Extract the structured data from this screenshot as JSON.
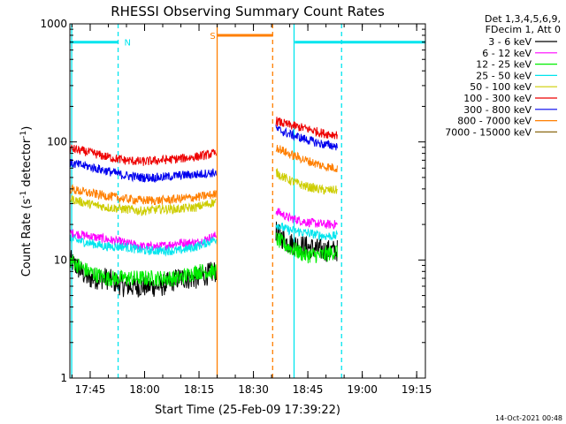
{
  "chart_data": {
    "type": "line",
    "title": "RHESSI Observing Summary Count Rates",
    "xlabel": "Start Time (25-Feb-09 17:39:22)",
    "ylabel_main": "Count Rate (s",
    "ylabel_sup1": "-1",
    "ylabel_mid": " detector",
    "ylabel_sup2": "-1",
    "ylabel_end": ")",
    "yscale": "log",
    "ylim": [
      1,
      1000
    ],
    "xlim_minutes": [
      0,
      98
    ],
    "x_tick_minutes": [
      5.6,
      20.6,
      35.6,
      50.6,
      65.6,
      80.6,
      95.6
    ],
    "x_tick_labels": [
      "17:45",
      "18:00",
      "18:15",
      "18:30",
      "18:45",
      "19:00",
      "19:15"
    ],
    "y_ticks": [
      1,
      10,
      100,
      1000
    ],
    "y_tick_labels": [
      "1",
      "10",
      "100",
      "1000"
    ],
    "legend_header": [
      "Det 1,3,4,5,6,9,",
      "FDecim 1, Att 0"
    ],
    "legend_position": "right",
    "date_stamp": "14-Oct-2021 00:48",
    "flags": [
      {
        "label": "N",
        "color": "#00e5ee",
        "level": 700,
        "segments": [
          [
            0,
            13.2
          ],
          [
            62,
            98
          ]
        ],
        "label_minute": 15.0
      },
      {
        "label": "S",
        "color": "#ff7f00",
        "level": 800,
        "segments": [
          [
            40.5,
            56.0
          ]
        ],
        "label_minute": 38.6
      }
    ],
    "vlines": [
      {
        "minute": 0.5,
        "color": "#00e5ee",
        "style": "solid"
      },
      {
        "minute": 13.3,
        "color": "#00e5ee",
        "style": "dashed"
      },
      {
        "minute": 40.6,
        "color": "#ff7f00",
        "style": "solid"
      },
      {
        "minute": 55.9,
        "color": "#ff7f00",
        "style": "dashed"
      },
      {
        "minute": 61.8,
        "color": "#00e5ee",
        "style": "solid"
      },
      {
        "minute": 74.9,
        "color": "#00e5ee",
        "style": "dashed"
      }
    ],
    "segments_minutes": [
      [
        0,
        40.4
      ],
      [
        56.8,
        73.8
      ]
    ],
    "series": [
      {
        "name": "3 - 6 keV",
        "color": "#000000",
        "seg1": [
          [
            0,
            10
          ],
          [
            5,
            7
          ],
          [
            10,
            7
          ],
          [
            15,
            6
          ],
          [
            20,
            6
          ],
          [
            25,
            6
          ],
          [
            30,
            7
          ],
          [
            35,
            7
          ],
          [
            40,
            8
          ]
        ],
        "seg2": [
          [
            57,
            17
          ],
          [
            60,
            14
          ],
          [
            65,
            13
          ],
          [
            70,
            12
          ],
          [
            73.8,
            12
          ]
        ]
      },
      {
        "name": "6 - 12 keV",
        "color": "#ff00ff",
        "seg1": [
          [
            0,
            17
          ],
          [
            5,
            16
          ],
          [
            10,
            15
          ],
          [
            15,
            14
          ],
          [
            20,
            13
          ],
          [
            25,
            13
          ],
          [
            30,
            14
          ],
          [
            35,
            14
          ],
          [
            40,
            16
          ]
        ],
        "seg2": [
          [
            57,
            26
          ],
          [
            60,
            23
          ],
          [
            65,
            21
          ],
          [
            70,
            20
          ],
          [
            73.8,
            20
          ]
        ]
      },
      {
        "name": "12 - 25 keV",
        "color": "#00ee00",
        "seg1": [
          [
            0,
            10
          ],
          [
            5,
            8
          ],
          [
            10,
            7
          ],
          [
            15,
            7
          ],
          [
            20,
            7
          ],
          [
            25,
            7
          ],
          [
            30,
            7
          ],
          [
            35,
            8
          ],
          [
            40,
            8
          ]
        ],
        "seg2": [
          [
            57,
            15
          ],
          [
            60,
            13
          ],
          [
            65,
            11
          ],
          [
            70,
            11
          ],
          [
            73.8,
            12
          ]
        ]
      },
      {
        "name": "25 - 50 keV",
        "color": "#00e5ee",
        "seg1": [
          [
            0,
            15
          ],
          [
            5,
            14
          ],
          [
            10,
            13
          ],
          [
            15,
            13
          ],
          [
            20,
            12
          ],
          [
            25,
            12
          ],
          [
            30,
            12
          ],
          [
            35,
            13
          ],
          [
            40,
            15
          ]
        ],
        "seg2": [
          [
            57,
            20
          ],
          [
            60,
            18
          ],
          [
            65,
            17
          ],
          [
            70,
            16
          ],
          [
            73.8,
            16
          ]
        ]
      },
      {
        "name": "50 - 100 keV",
        "color": "#cdcd00",
        "seg1": [
          [
            0,
            33
          ],
          [
            5,
            30
          ],
          [
            10,
            28
          ],
          [
            15,
            27
          ],
          [
            20,
            26
          ],
          [
            25,
            27
          ],
          [
            30,
            27
          ],
          [
            35,
            28
          ],
          [
            40,
            31
          ]
        ],
        "seg2": [
          [
            57,
            55
          ],
          [
            60,
            48
          ],
          [
            65,
            42
          ],
          [
            70,
            39
          ],
          [
            73.8,
            39
          ]
        ]
      },
      {
        "name": "100 - 300 keV",
        "color": "#ee0000",
        "seg1": [
          [
            0,
            88
          ],
          [
            5,
            82
          ],
          [
            10,
            75
          ],
          [
            15,
            70
          ],
          [
            20,
            68
          ],
          [
            25,
            70
          ],
          [
            30,
            72
          ],
          [
            35,
            75
          ],
          [
            40,
            80
          ]
        ],
        "seg2": [
          [
            57,
            150
          ],
          [
            60,
            140
          ],
          [
            65,
            130
          ],
          [
            70,
            118
          ],
          [
            73.8,
            115
          ]
        ]
      },
      {
        "name": "300 - 800 keV",
        "color": "#0000ee",
        "seg1": [
          [
            0,
            66
          ],
          [
            5,
            62
          ],
          [
            10,
            57
          ],
          [
            15,
            52
          ],
          [
            20,
            50
          ],
          [
            25,
            50
          ],
          [
            30,
            52
          ],
          [
            35,
            53
          ],
          [
            40,
            55
          ]
        ],
        "seg2": [
          [
            57,
            128
          ],
          [
            60,
            118
          ],
          [
            65,
            105
          ],
          [
            70,
            95
          ],
          [
            73.8,
            92
          ]
        ]
      },
      {
        "name": "800 - 7000 keV",
        "color": "#ff7f00",
        "seg1": [
          [
            0,
            40
          ],
          [
            5,
            37
          ],
          [
            10,
            35
          ],
          [
            15,
            33
          ],
          [
            20,
            32
          ],
          [
            25,
            32
          ],
          [
            30,
            33
          ],
          [
            35,
            34
          ],
          [
            40,
            36
          ]
        ],
        "seg2": [
          [
            57,
            90
          ],
          [
            60,
            80
          ],
          [
            65,
            70
          ],
          [
            70,
            62
          ],
          [
            73.8,
            60
          ]
        ]
      },
      {
        "name": "7000 - 15000 keV",
        "color": "#8b6914",
        "seg1": [],
        "seg2": []
      }
    ]
  }
}
